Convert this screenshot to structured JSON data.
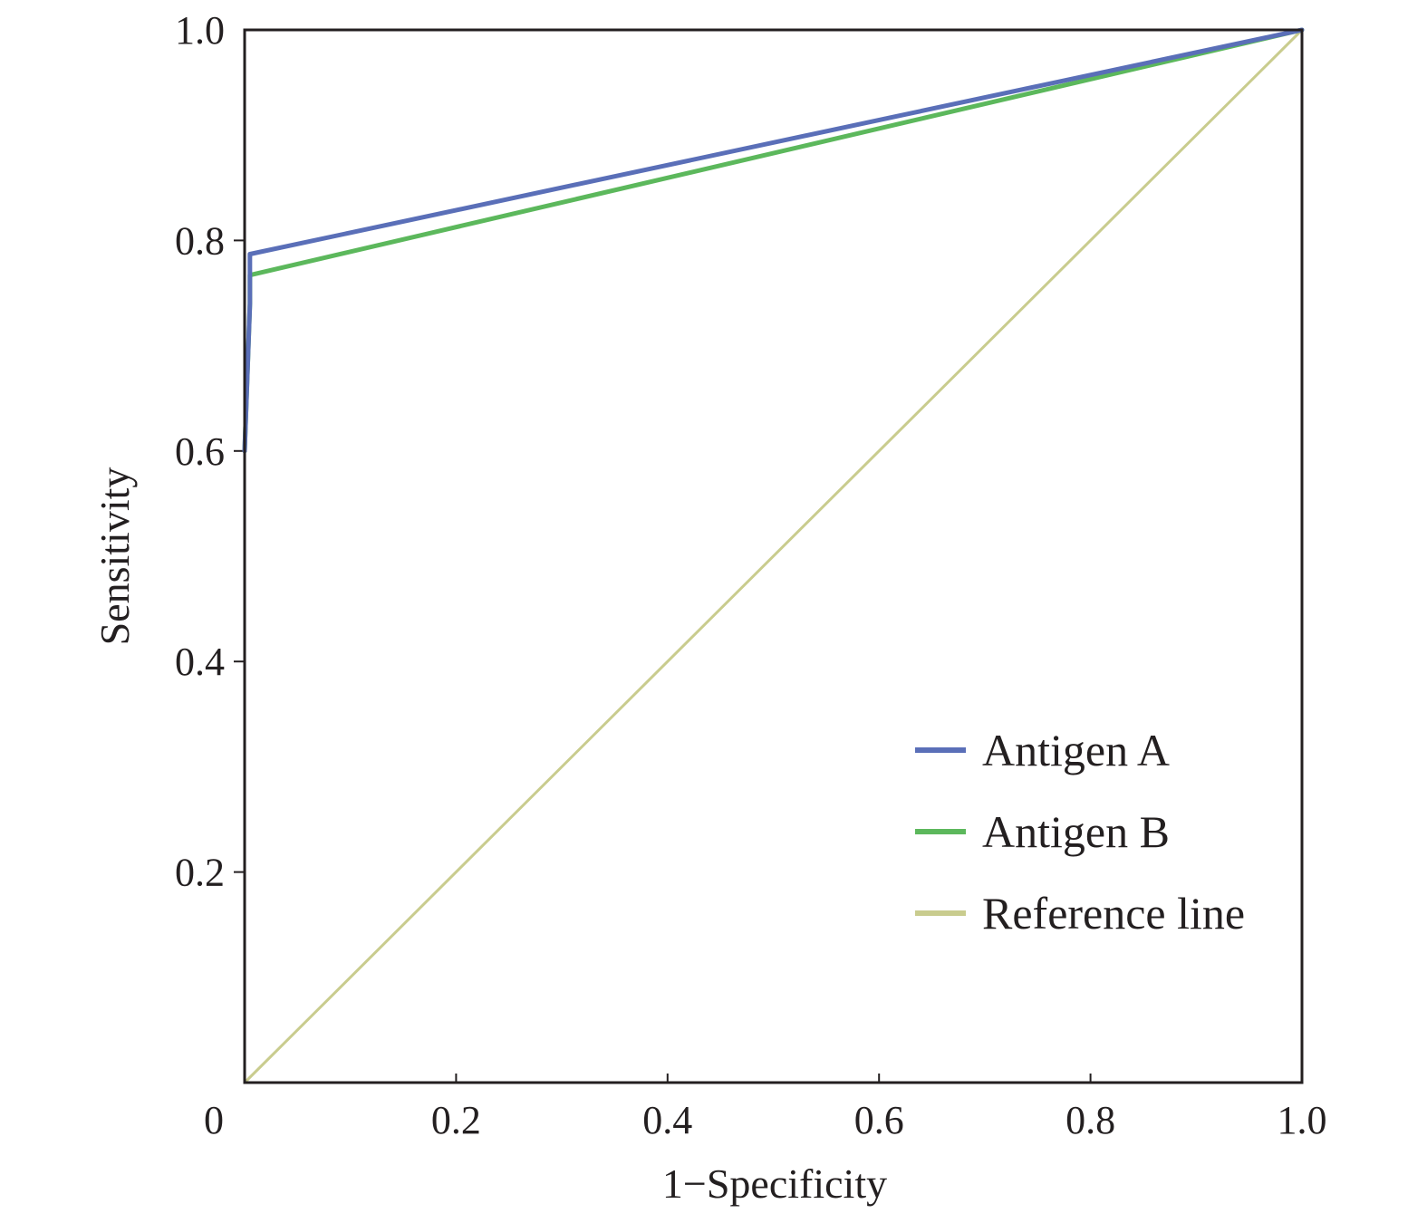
{
  "chart_data": {
    "type": "line",
    "title": "",
    "xlabel": "1−Specificity",
    "ylabel": "Sensitivity",
    "xlim": [
      0,
      1
    ],
    "ylim": [
      0,
      1
    ],
    "x_ticks": [
      0,
      0.2,
      0.4,
      0.6,
      0.8,
      1.0
    ],
    "x_tick_labels": [
      "0",
      "0.2",
      "0.4",
      "0.6",
      "0.8",
      "1.0"
    ],
    "y_ticks": [
      0.2,
      0.4,
      0.6,
      0.8,
      1.0
    ],
    "y_tick_labels": [
      "0.2",
      "0.4",
      "0.6",
      "0.8",
      "1.0"
    ],
    "grid": false,
    "legend_position": "bottom-right",
    "series": [
      {
        "name": "Antigen A",
        "color": "#5a6fb8",
        "x": [
          0,
          0.005,
          0.005,
          1.0
        ],
        "y": [
          0.6,
          0.74,
          0.787,
          1.0
        ]
      },
      {
        "name": "Antigen B",
        "color": "#5cb85c",
        "x": [
          0,
          0.005,
          0.005,
          1.0
        ],
        "y": [
          0.6,
          0.74,
          0.767,
          1.0
        ]
      },
      {
        "name": "Reference line",
        "color": "#c9cc8e",
        "x": [
          0,
          1.0
        ],
        "y": [
          0,
          1.0
        ]
      }
    ]
  }
}
